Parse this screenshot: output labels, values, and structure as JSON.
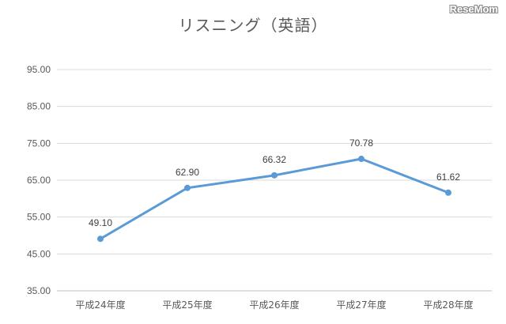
{
  "watermark": "ReseMom",
  "chart_data": {
    "type": "line",
    "title": "リスニング（英語）",
    "categories": [
      "平成24年度",
      "平成25年度",
      "平成26年度",
      "平成27年度",
      "平成28年度"
    ],
    "values": [
      49.1,
      62.9,
      66.32,
      70.78,
      61.62
    ],
    "data_labels": [
      "49.10",
      "62.90",
      "66.32",
      "70.78",
      "61.62"
    ],
    "yticks": [
      "35.00",
      "45.00",
      "55.00",
      "65.00",
      "75.00",
      "85.00",
      "95.00"
    ],
    "ylim": [
      35,
      95
    ],
    "grid": true,
    "legend": "none",
    "xlabel": "",
    "ylabel": "",
    "colors": {
      "line": "#5b9bd5",
      "grid": "#d9d9d9",
      "text": "#595959"
    }
  }
}
